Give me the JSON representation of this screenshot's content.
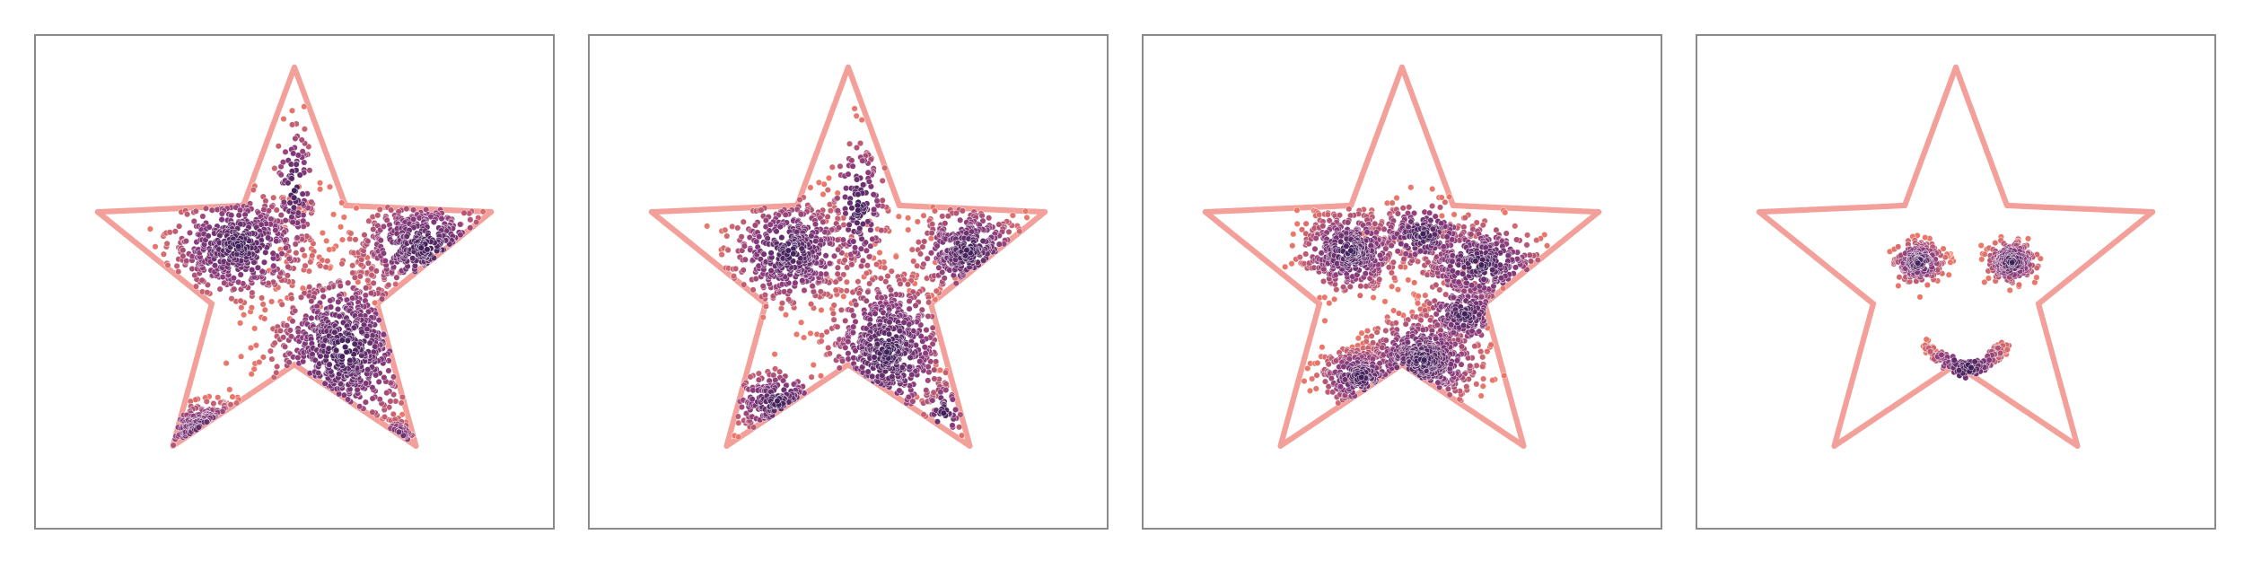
{
  "chart_data": [
    {
      "type": "scatter",
      "title": "",
      "xlabel": "",
      "ylabel": "",
      "xlim": [
        -1.25,
        1.25
      ],
      "ylim": [
        -1.2,
        1.15
      ],
      "grid": false,
      "colors": {
        "outline": "#f4a09a",
        "dense": "#3b1f58",
        "mid": "#8a3b7c",
        "sparse": "#e9776a"
      },
      "outline": "star",
      "clusters": [
        {
          "cx": -0.27,
          "cy": 0.15,
          "sx": 0.17,
          "sy": 0.13,
          "n": 500
        },
        {
          "cx": 0.24,
          "cy": -0.35,
          "sx": 0.18,
          "sy": 0.2,
          "n": 620
        },
        {
          "cx": 0.63,
          "cy": 0.14,
          "sx": 0.17,
          "sy": 0.12,
          "n": 360
        },
        {
          "cx": 0.0,
          "cy": 0.42,
          "sx": 0.05,
          "sy": 0.16,
          "n": 110
        },
        {
          "cx": -0.4,
          "cy": -0.74,
          "sx": 0.13,
          "sy": 0.07,
          "n": 150
        },
        {
          "cx": 0.5,
          "cy": -0.78,
          "sx": 0.04,
          "sy": 0.05,
          "n": 40
        }
      ]
    },
    {
      "type": "scatter",
      "title": "",
      "xlabel": "",
      "ylabel": "",
      "xlim": [
        -1.25,
        1.25
      ],
      "ylim": [
        -1.2,
        1.15
      ],
      "grid": false,
      "colors": {
        "outline": "#f4a09a",
        "dense": "#3b1f58",
        "mid": "#8a3b7c",
        "sparse": "#e9776a"
      },
      "outline": "star",
      "clusters": [
        {
          "cx": -0.28,
          "cy": 0.12,
          "sx": 0.15,
          "sy": 0.13,
          "n": 460
        },
        {
          "cx": 0.19,
          "cy": -0.36,
          "sx": 0.15,
          "sy": 0.19,
          "n": 560
        },
        {
          "cx": 0.58,
          "cy": 0.12,
          "sx": 0.13,
          "sy": 0.11,
          "n": 300
        },
        {
          "cx": 0.05,
          "cy": 0.33,
          "sx": 0.07,
          "sy": 0.17,
          "n": 160
        },
        {
          "cx": -0.34,
          "cy": -0.6,
          "sx": 0.12,
          "sy": 0.08,
          "n": 170
        },
        {
          "cx": 0.46,
          "cy": -0.65,
          "sx": 0.05,
          "sy": 0.08,
          "n": 50
        }
      ]
    },
    {
      "type": "scatter",
      "title": "",
      "xlabel": "",
      "ylabel": "",
      "xlim": [
        -1.25,
        1.25
      ],
      "ylim": [
        -1.2,
        1.15
      ],
      "grid": false,
      "colors": {
        "outline": "#f4a09a",
        "dense": "#3b1f58",
        "mid": "#8a3b7c",
        "sparse": "#e9776a"
      },
      "outline": "star",
      "clusters": [
        {
          "cx": -0.25,
          "cy": 0.12,
          "sx": 0.12,
          "sy": 0.1,
          "n": 430
        },
        {
          "cx": 0.1,
          "cy": -0.4,
          "sx": 0.14,
          "sy": 0.11,
          "n": 470
        },
        {
          "cx": 0.38,
          "cy": 0.06,
          "sx": 0.15,
          "sy": 0.1,
          "n": 340
        },
        {
          "cx": -0.2,
          "cy": -0.48,
          "sx": 0.1,
          "sy": 0.07,
          "n": 220
        },
        {
          "cx": 0.1,
          "cy": 0.2,
          "sx": 0.12,
          "sy": 0.08,
          "n": 220
        },
        {
          "cx": 0.3,
          "cy": -0.18,
          "sx": 0.1,
          "sy": 0.08,
          "n": 180
        }
      ]
    },
    {
      "type": "scatter",
      "title": "",
      "xlabel": "",
      "ylabel": "",
      "xlim": [
        -1.25,
        1.25
      ],
      "ylim": [
        -1.2,
        1.15
      ],
      "grid": false,
      "colors": {
        "outline": "#f4a09a",
        "dense": "#3b1f58",
        "mid": "#8a3b7c",
        "sparse": "#e9776a"
      },
      "outline": "star",
      "clusters": [
        {
          "cx": -0.18,
          "cy": 0.07,
          "sx": 0.06,
          "sy": 0.05,
          "n": 220
        },
        {
          "cx": 0.27,
          "cy": 0.07,
          "sx": 0.06,
          "sy": 0.05,
          "n": 220
        }
      ],
      "smile": {
        "cx": 0.05,
        "cy": -0.32,
        "rx": 0.2,
        "depth": 0.12,
        "n": 220
      }
    }
  ]
}
